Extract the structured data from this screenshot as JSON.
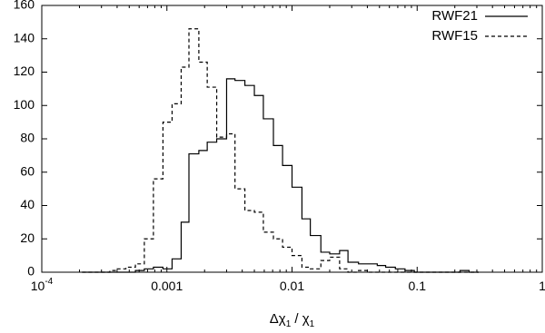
{
  "chart_data": {
    "type": "histogram",
    "xscale": "log",
    "xlim": [
      0.0001,
      1
    ],
    "ylim": [
      0,
      160
    ],
    "xlabel": {
      "prefix": "Δχ",
      "sub1": "1",
      "mid": " / χ",
      "sub2": "1"
    },
    "x_ticks": [
      {
        "value": 0.0001,
        "base": "10",
        "exp": "-4"
      },
      {
        "value": 0.001,
        "label": "0.001"
      },
      {
        "value": 0.01,
        "label": "0.01"
      },
      {
        "value": 0.1,
        "label": "0.1"
      },
      {
        "value": 1,
        "label": "1"
      }
    ],
    "y_ticks": [
      0,
      20,
      40,
      60,
      80,
      100,
      120,
      140,
      160
    ],
    "grid": false,
    "legend_position": "top-right",
    "series": [
      {
        "name": "RWF21",
        "style": "solid",
        "color": "#000000",
        "edges": [
          0.00021,
          0.00025,
          0.0003,
          0.00035,
          0.0004,
          0.00047,
          0.00056,
          0.00066,
          0.00078,
          0.00093,
          0.0011,
          0.0013,
          0.0015,
          0.0018,
          0.0021,
          0.0025,
          0.003,
          0.0035,
          0.0042,
          0.005,
          0.0059,
          0.0071,
          0.0084,
          0.01,
          0.012,
          0.014,
          0.017,
          0.02,
          0.024,
          0.028,
          0.034,
          0.04,
          0.048,
          0.056,
          0.067,
          0.08,
          0.095,
          0.11,
          0.13,
          0.16,
          0.19,
          0.22,
          0.26,
          0.31
        ],
        "counts": [
          0,
          0,
          0,
          0,
          0,
          0,
          1,
          2,
          3,
          2,
          8,
          30,
          71,
          73,
          78,
          80,
          116,
          115,
          112,
          106,
          92,
          76,
          64,
          51,
          32,
          22,
          12,
          11,
          13,
          6,
          5,
          5,
          4,
          3,
          2,
          1,
          0,
          0,
          0,
          0,
          0,
          1,
          0
        ]
      },
      {
        "name": "RWF15",
        "style": "dashed",
        "color": "#000000",
        "edges": [
          0.00021,
          0.00025,
          0.0003,
          0.00035,
          0.0004,
          0.00047,
          0.00056,
          0.00066,
          0.00078,
          0.00093,
          0.0011,
          0.0013,
          0.0015,
          0.0018,
          0.0021,
          0.0025,
          0.003,
          0.0035,
          0.0042,
          0.005,
          0.0059,
          0.0071,
          0.0084,
          0.01,
          0.012,
          0.014,
          0.017,
          0.02,
          0.024,
          0.028,
          0.034,
          0.04,
          0.048,
          0.056,
          0.067,
          0.08,
          0.095,
          0.11,
          0.13,
          0.16,
          0.19,
          0.22,
          0.26,
          0.31
        ],
        "counts": [
          0,
          0,
          0,
          1,
          2,
          3,
          5,
          20,
          56,
          90,
          101,
          123,
          146,
          126,
          111,
          81,
          83,
          50,
          37,
          36,
          24,
          20,
          15,
          10,
          3,
          2,
          7,
          9,
          2,
          0,
          1,
          0,
          0,
          0,
          0,
          0,
          0,
          0,
          0,
          0,
          0,
          0,
          0
        ]
      }
    ]
  }
}
